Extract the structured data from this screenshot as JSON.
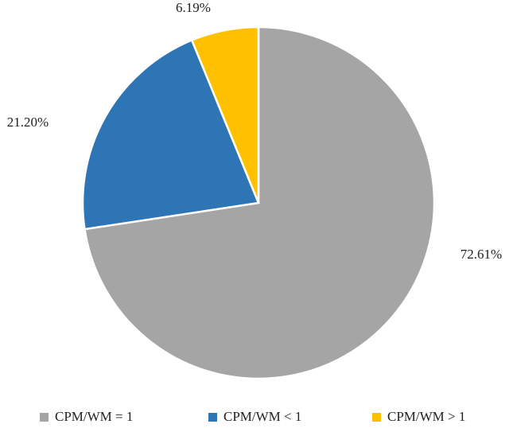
{
  "chart_data": {
    "type": "pie",
    "categories": [
      "CPM/WM = 1",
      "CPM/WM < 1",
      "CPM/WM > 1"
    ],
    "values": [
      72.61,
      21.2,
      6.19
    ],
    "value_labels": [
      "72.61%",
      "21.20%",
      "6.19%"
    ],
    "colors": [
      "#a5a5a5",
      "#2e75b6",
      "#ffc000"
    ],
    "legend": "bottom"
  }
}
